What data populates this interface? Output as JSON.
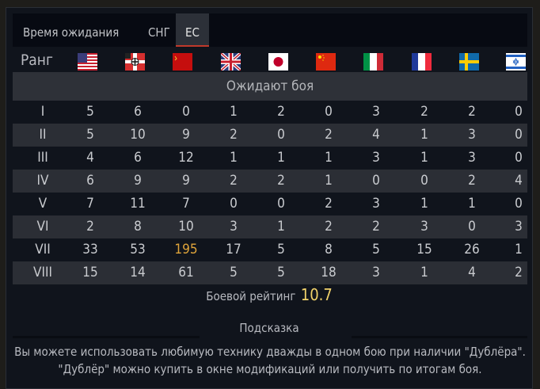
{
  "tabs": [
    {
      "label": "Время ожидания",
      "active": false
    },
    {
      "label": "СНГ",
      "active": false
    },
    {
      "label": "ЕС",
      "active": true
    }
  ],
  "rank_label": "Ранг",
  "flags": [
    "usa-flag",
    "germany-flag",
    "ussr-flag",
    "uk-flag",
    "japan-flag",
    "china-flag",
    "italy-flag",
    "france-flag",
    "sweden-flag",
    "israel-flag"
  ],
  "header": "Ожидают боя",
  "rows": [
    {
      "rank": "I",
      "values": [
        "5",
        "6",
        "0",
        "1",
        "2",
        "0",
        "3",
        "2",
        "2",
        "0"
      ]
    },
    {
      "rank": "II",
      "values": [
        "5",
        "10",
        "9",
        "2",
        "0",
        "2",
        "4",
        "1",
        "3",
        "0"
      ]
    },
    {
      "rank": "III",
      "values": [
        "4",
        "6",
        "12",
        "1",
        "1",
        "1",
        "3",
        "1",
        "3",
        "0"
      ]
    },
    {
      "rank": "IV",
      "values": [
        "6",
        "9",
        "9",
        "2",
        "2",
        "1",
        "0",
        "0",
        "2",
        "4"
      ]
    },
    {
      "rank": "V",
      "values": [
        "7",
        "11",
        "7",
        "0",
        "0",
        "2",
        "3",
        "1",
        "1",
        "0"
      ]
    },
    {
      "rank": "VI",
      "values": [
        "2",
        "8",
        "10",
        "3",
        "1",
        "2",
        "2",
        "3",
        "0",
        "3"
      ]
    },
    {
      "rank": "VII",
      "values": [
        "33",
        "53",
        "195",
        "17",
        "5",
        "8",
        "5",
        "15",
        "26",
        "1"
      ]
    },
    {
      "rank": "VIII",
      "values": [
        "15",
        "14",
        "61",
        "5",
        "5",
        "18",
        "3",
        "1",
        "4",
        "2"
      ]
    }
  ],
  "highlight": {
    "row": 6,
    "col": 2,
    "color": "#e0a53a"
  },
  "rating": {
    "label": "Боевой рейтинг",
    "value": "10.7"
  },
  "hint": {
    "title": "Подсказка",
    "text": "Вы можете использовать любимую технику дважды в одном бою при наличии \"Дублёра\". \"Дублёр\" можно купить в окне модификаций или получить по итогам боя."
  }
}
